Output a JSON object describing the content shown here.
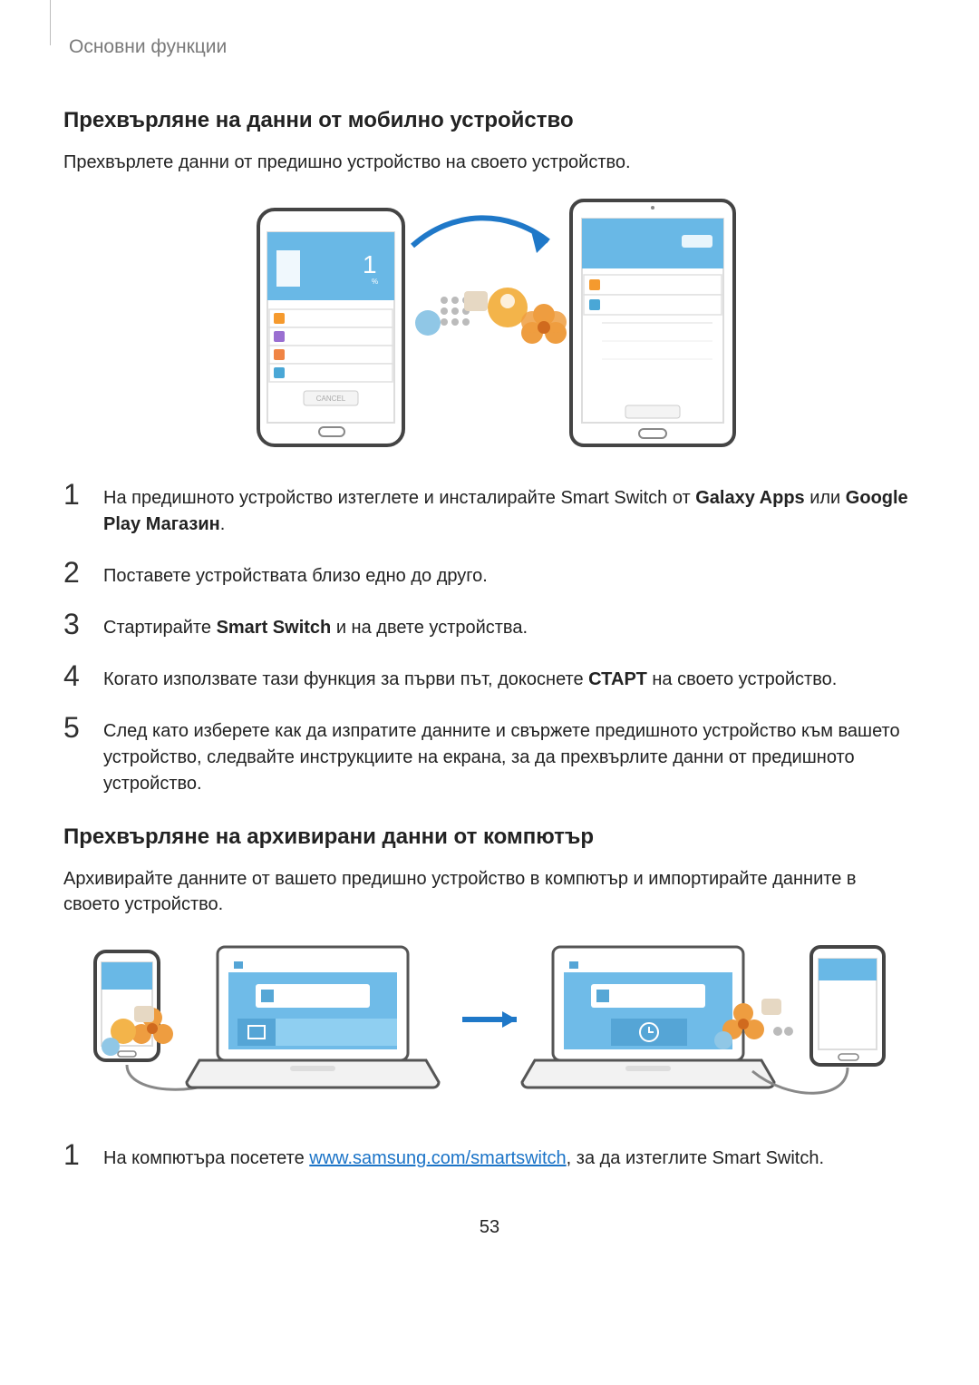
{
  "chapter": "Основни функции",
  "section1": {
    "title": "Прехвърляне на данни от мобилно устройство",
    "lead": "Прехвърлете данни от предишно устройство на своето устройство.",
    "steps": [
      {
        "n": "1",
        "html": "На предишното устройство изтеглете и инсталирайте Smart Switch от <b>Galaxy Apps</b> или <b>Google Play Магазин</b>."
      },
      {
        "n": "2",
        "html": "Поставете устройствата близо едно до друго."
      },
      {
        "n": "3",
        "html": "Стартирайте <b>Smart Switch</b> и на двете устройства."
      },
      {
        "n": "4",
        "html": "Когато използвате тази функция за първи път, докоснете <b>СТАРТ</b> на своето устройство."
      },
      {
        "n": "5",
        "html": "След като изберете как да изпратите данните и свържете предишното устройство към вашето устройство, следвайте инструкциите на екрана, за да прехвърлите данни от предишното устройство."
      }
    ]
  },
  "section2": {
    "title": "Прехвърляне на архивирани данни от компютър",
    "lead": "Архивирайте данните от вашето предишно устройство в компютър и импортирайте данните в своето устройство.",
    "step1_pre": "На компютъра посетете ",
    "step1_link": "www.samsung.com/smartswitch",
    "step1_post": ", за да изтеглите Smart Switch.",
    "step1_n": "1"
  },
  "pageNumber": "53",
  "fig1": {
    "cancel_label": "CANCEL"
  }
}
